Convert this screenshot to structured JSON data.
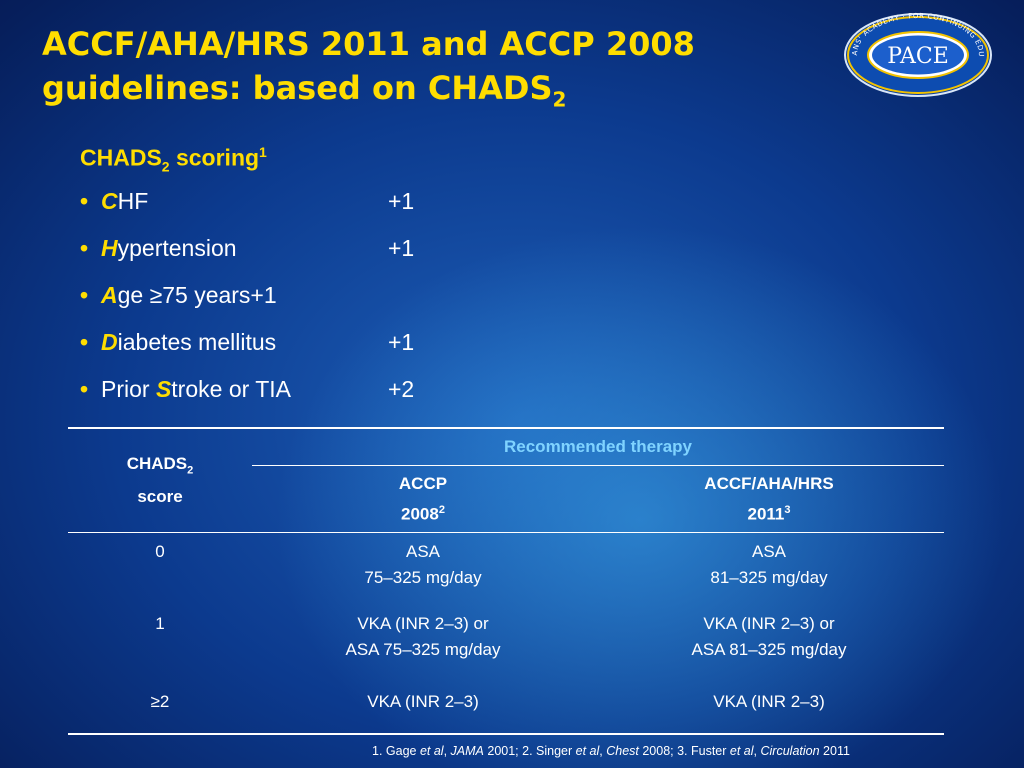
{
  "title": {
    "line1": "ACCF/AHA/HRS 2011 and ACCP 2008",
    "line2": "guidelines: based on CHADS",
    "line2_sub": "2"
  },
  "logo": {
    "text": "PACE",
    "ring_text": "PHYSICIANS' ACADEMY · FOR CONTINUING EDUCATION"
  },
  "scoring": {
    "heading": "CHADS",
    "heading_sub": "2",
    "heading_rest": " scoring",
    "heading_sup": "1",
    "bullet": "•",
    "items": [
      {
        "lead": "C",
        "rest": "HF",
        "prefix": "",
        "points": "+1"
      },
      {
        "lead": "H",
        "rest": "ypertension",
        "prefix": "",
        "points": "+1"
      },
      {
        "lead": "A",
        "rest": "ge ≥75 years+1",
        "prefix": "",
        "points": ""
      },
      {
        "lead": "D",
        "rest": "iabetes mellitus",
        "prefix": "",
        "points": "+1"
      },
      {
        "lead": "S",
        "rest": "troke or TIA",
        "prefix": "Prior ",
        "points": "+2"
      }
    ]
  },
  "table": {
    "recommended": "Recommended therapy",
    "col_score": {
      "line1": "CHADS",
      "line1_sub": "2",
      "line2": "score"
    },
    "col_accp": {
      "line1": "ACCP",
      "line2": "2008",
      "sup": "2"
    },
    "col_hrs": {
      "line1": "ACCF/AHA/HRS",
      "line2": "2011",
      "sup": "3"
    },
    "rows": [
      {
        "score": "0",
        "accp1": "ASA",
        "accp2": "75–325 mg/day",
        "hrs1": "ASA",
        "hrs2": "81–325 mg/day"
      },
      {
        "score": "1",
        "accp1": "VKA (INR 2–3) or",
        "accp2": "ASA 75–325 mg/day",
        "hrs1": "VKA (INR 2–3) or",
        "hrs2": "ASA 81–325 mg/day"
      },
      {
        "score": "≥2",
        "accp1": "VKA (INR 2–3)",
        "accp2": "",
        "hrs1": "VKA (INR 2–3)",
        "hrs2": ""
      }
    ]
  },
  "footnote": {
    "p1": "1. Gage ",
    "i1": "et al",
    "p2": ", ",
    "i2": "JAMA",
    "p3": " 2001; 2. Singer ",
    "i3": "et al",
    "p4": ", ",
    "i4": "Chest",
    "p5": " 2008; 3. Fuster ",
    "i5": "et al",
    "p6": ", ",
    "i6": "Circulation",
    "p7": " 2011"
  },
  "colors": {
    "accent": "#ffdd00",
    "header_blue": "#7fd3ff",
    "background": "#0c3a8e"
  }
}
